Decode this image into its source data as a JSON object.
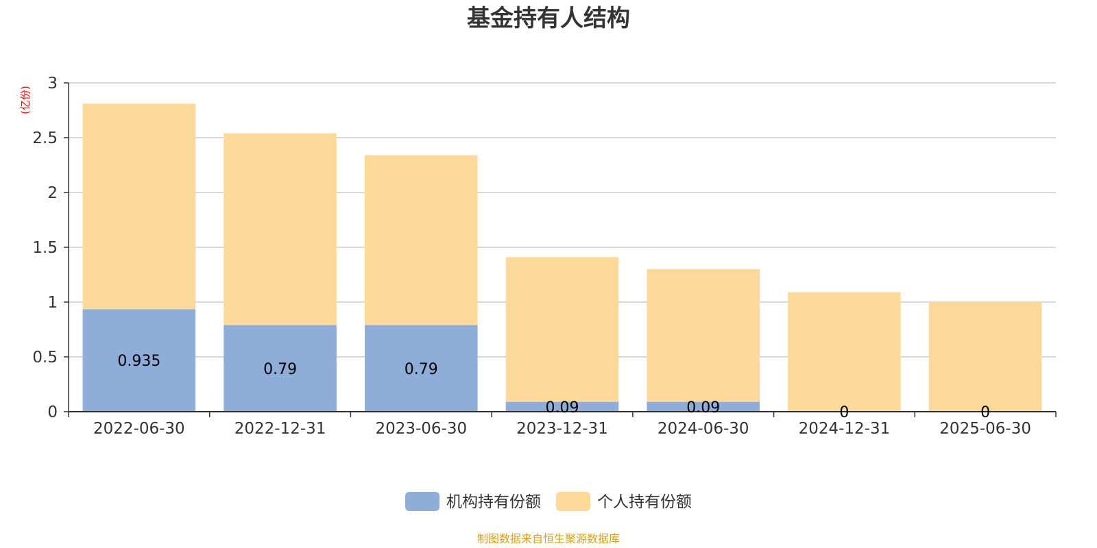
{
  "chart_data": {
    "type": "bar",
    "stacked": true,
    "title": "基金持有人结构",
    "unit_label": "(亿份)",
    "categories": [
      "2022-06-30",
      "2022-12-31",
      "2023-06-30",
      "2023-12-31",
      "2024-06-30",
      "2024-12-31",
      "2025-06-30"
    ],
    "series": [
      {
        "name": "机构持有份额",
        "values": [
          0.935,
          0.79,
          0.79,
          0.09,
          0.09,
          0,
          0
        ],
        "color": "#8eadd9",
        "labels": [
          "0.935",
          "0.79",
          "0.79",
          "0.09",
          "0.09",
          "0",
          "0"
        ]
      },
      {
        "name": "个人持有份额",
        "values": [
          1.875,
          1.75,
          1.55,
          1.32,
          1.21,
          1.09,
          1.0
        ],
        "color": "#fdd999"
      }
    ],
    "ylim": [
      0,
      3
    ],
    "yticks": [
      "0",
      "0.5",
      "1",
      "1.5",
      "2",
      "2.5",
      "3"
    ],
    "grid": true,
    "legend_position": "bottom-center",
    "source_note": "制图数据来自恒生聚源数据库"
  }
}
